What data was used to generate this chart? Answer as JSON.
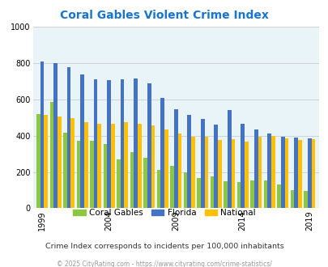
{
  "title": "Coral Gables Violent Crime Index",
  "title_color": "#1874CD",
  "subtitle": "Crime Index corresponds to incidents per 100,000 inhabitants",
  "footer": "© 2025 CityRating.com - https://www.cityrating.com/crime-statistics/",
  "years": [
    1999,
    2000,
    2001,
    2002,
    2003,
    2004,
    2005,
    2006,
    2007,
    2008,
    2009,
    2010,
    2011,
    2012,
    2013,
    2014,
    2015,
    2016,
    2017,
    2018,
    2019
  ],
  "coral_gables": [
    520,
    585,
    415,
    370,
    370,
    355,
    270,
    310,
    280,
    210,
    235,
    200,
    165,
    175,
    150,
    145,
    155,
    155,
    130,
    100,
    95
  ],
  "florida": [
    810,
    800,
    775,
    735,
    710,
    705,
    710,
    715,
    690,
    610,
    545,
    515,
    490,
    460,
    540,
    465,
    435,
    410,
    395,
    390,
    385
  ],
  "national": [
    515,
    505,
    495,
    475,
    465,
    465,
    475,
    465,
    455,
    435,
    410,
    395,
    395,
    375,
    380,
    365,
    395,
    400,
    385,
    375,
    380
  ],
  "coral_color": "#8DC63F",
  "florida_color": "#4472C4",
  "national_color": "#FFC000",
  "bg_color": "#E8F4F8",
  "ylim": [
    0,
    1000
  ],
  "yticks": [
    0,
    200,
    400,
    600,
    800,
    1000
  ],
  "xlabel_ticks": [
    1999,
    2004,
    2009,
    2014,
    2019
  ],
  "bar_width": 0.28,
  "legend_labels": [
    "Coral Gables",
    "Florida",
    "National"
  ],
  "grid_color": "#CCCCCC"
}
